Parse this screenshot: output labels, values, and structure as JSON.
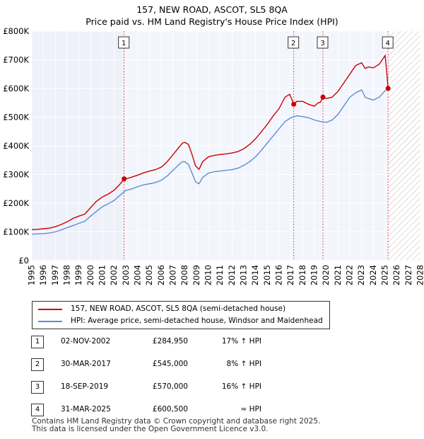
{
  "header": {
    "title": "157, NEW ROAD, ASCOT, SL5 8QA",
    "subtitle": "Price paid vs. HM Land Registry's House Price Index (HPI)"
  },
  "chart_data": {
    "type": "line",
    "title": "157, NEW ROAD, ASCOT, SL5 8QA",
    "subtitle": "Price paid vs. HM Land Registry's House Price Index (HPI)",
    "xlabel": "",
    "ylabel": "",
    "xlim": [
      1995,
      2028
    ],
    "ylim": [
      0,
      800000
    ],
    "x_ticks": [
      1995,
      1996,
      1997,
      1998,
      1999,
      2000,
      2001,
      2002,
      2003,
      2004,
      2005,
      2006,
      2007,
      2008,
      2009,
      2010,
      2011,
      2012,
      2013,
      2014,
      2015,
      2016,
      2017,
      2018,
      2019,
      2020,
      2021,
      2022,
      2023,
      2024,
      2025,
      2026,
      2027,
      2028
    ],
    "y_ticks": [
      {
        "value": 0,
        "label": "£0"
      },
      {
        "value": 100000,
        "label": "£100K"
      },
      {
        "value": 200000,
        "label": "£200K"
      },
      {
        "value": 300000,
        "label": "£300K"
      },
      {
        "value": 400000,
        "label": "£400K"
      },
      {
        "value": 500000,
        "label": "£500K"
      },
      {
        "value": 600000,
        "label": "£600K"
      },
      {
        "value": 700000,
        "label": "£700K"
      },
      {
        "value": 800000,
        "label": "£800K"
      }
    ],
    "grid": true,
    "future_hatch_from": 2025.25,
    "sale_band": [
      2002.84,
      2025.25
    ],
    "series": [
      {
        "name": "157, NEW ROAD, ASCOT, SL5 8QA (semi-detached house)",
        "color": "#cc0000",
        "points": [
          [
            1995.0,
            108000
          ],
          [
            1995.5,
            109000
          ],
          [
            1996.0,
            111000
          ],
          [
            1996.5,
            113000
          ],
          [
            1997.0,
            118000
          ],
          [
            1997.5,
            126000
          ],
          [
            1998.0,
            135000
          ],
          [
            1998.5,
            147000
          ],
          [
            1999.0,
            155000
          ],
          [
            1999.5,
            162000
          ],
          [
            2000.0,
            185000
          ],
          [
            2000.5,
            207000
          ],
          [
            2001.0,
            222000
          ],
          [
            2001.5,
            232000
          ],
          [
            2002.0,
            246000
          ],
          [
            2002.5,
            267000
          ],
          [
            2002.84,
            284950
          ],
          [
            2003.0,
            285000
          ],
          [
            2003.5,
            291000
          ],
          [
            2004.0,
            298000
          ],
          [
            2004.5,
            306000
          ],
          [
            2005.0,
            312000
          ],
          [
            2005.5,
            317000
          ],
          [
            2006.0,
            326000
          ],
          [
            2006.5,
            345000
          ],
          [
            2007.0,
            370000
          ],
          [
            2007.5,
            395000
          ],
          [
            2007.8,
            410000
          ],
          [
            2008.0,
            412000
          ],
          [
            2008.3,
            405000
          ],
          [
            2008.6,
            370000
          ],
          [
            2008.9,
            330000
          ],
          [
            2009.2,
            318000
          ],
          [
            2009.5,
            345000
          ],
          [
            2010.0,
            362000
          ],
          [
            2010.5,
            367000
          ],
          [
            2011.0,
            370000
          ],
          [
            2011.5,
            372000
          ],
          [
            2012.0,
            375000
          ],
          [
            2012.5,
            380000
          ],
          [
            2013.0,
            390000
          ],
          [
            2013.5,
            405000
          ],
          [
            2014.0,
            425000
          ],
          [
            2014.5,
            450000
          ],
          [
            2015.0,
            475000
          ],
          [
            2015.5,
            505000
          ],
          [
            2016.0,
            530000
          ],
          [
            2016.5,
            570000
          ],
          [
            2016.9,
            580000
          ],
          [
            2017.24,
            545000
          ],
          [
            2017.5,
            555000
          ],
          [
            2018.0,
            555000
          ],
          [
            2018.5,
            545000
          ],
          [
            2019.0,
            538000
          ],
          [
            2019.3,
            550000
          ],
          [
            2019.5,
            552000
          ],
          [
            2019.72,
            570000
          ],
          [
            2020.0,
            565000
          ],
          [
            2020.5,
            570000
          ],
          [
            2021.0,
            590000
          ],
          [
            2021.5,
            620000
          ],
          [
            2022.0,
            650000
          ],
          [
            2022.5,
            680000
          ],
          [
            2023.0,
            690000
          ],
          [
            2023.3,
            670000
          ],
          [
            2023.6,
            675000
          ],
          [
            2024.0,
            672000
          ],
          [
            2024.5,
            685000
          ],
          [
            2025.0,
            715000
          ],
          [
            2025.15,
            650000
          ],
          [
            2025.25,
            600500
          ]
        ]
      },
      {
        "name": "HPI: Average price, semi-detached house, Windsor and Maidenhead",
        "color": "#5b8fcf",
        "points": [
          [
            1995.0,
            92000
          ],
          [
            1995.5,
            93000
          ],
          [
            1996.0,
            94000
          ],
          [
            1996.5,
            96000
          ],
          [
            1997.0,
            100000
          ],
          [
            1997.5,
            107000
          ],
          [
            1998.0,
            115000
          ],
          [
            1998.5,
            122000
          ],
          [
            1999.0,
            130000
          ],
          [
            1999.5,
            137000
          ],
          [
            2000.0,
            155000
          ],
          [
            2000.5,
            172000
          ],
          [
            2001.0,
            188000
          ],
          [
            2001.5,
            198000
          ],
          [
            2002.0,
            210000
          ],
          [
            2002.5,
            228000
          ],
          [
            2002.84,
            240000
          ],
          [
            2003.0,
            245000
          ],
          [
            2003.5,
            250000
          ],
          [
            2004.0,
            258000
          ],
          [
            2004.5,
            264000
          ],
          [
            2005.0,
            268000
          ],
          [
            2005.5,
            272000
          ],
          [
            2006.0,
            280000
          ],
          [
            2006.5,
            295000
          ],
          [
            2007.0,
            315000
          ],
          [
            2007.5,
            335000
          ],
          [
            2007.8,
            345000
          ],
          [
            2008.0,
            345000
          ],
          [
            2008.3,
            335000
          ],
          [
            2008.6,
            305000
          ],
          [
            2008.9,
            275000
          ],
          [
            2009.2,
            268000
          ],
          [
            2009.5,
            290000
          ],
          [
            2010.0,
            305000
          ],
          [
            2010.5,
            310000
          ],
          [
            2011.0,
            312000
          ],
          [
            2011.5,
            315000
          ],
          [
            2012.0,
            317000
          ],
          [
            2012.5,
            322000
          ],
          [
            2013.0,
            332000
          ],
          [
            2013.5,
            345000
          ],
          [
            2014.0,
            362000
          ],
          [
            2014.5,
            385000
          ],
          [
            2015.0,
            410000
          ],
          [
            2015.5,
            435000
          ],
          [
            2016.0,
            460000
          ],
          [
            2016.5,
            485000
          ],
          [
            2017.0,
            498000
          ],
          [
            2017.5,
            505000
          ],
          [
            2018.0,
            502000
          ],
          [
            2018.5,
            498000
          ],
          [
            2019.0,
            490000
          ],
          [
            2019.5,
            485000
          ],
          [
            2020.0,
            482000
          ],
          [
            2020.5,
            490000
          ],
          [
            2021.0,
            510000
          ],
          [
            2021.5,
            540000
          ],
          [
            2022.0,
            570000
          ],
          [
            2022.5,
            585000
          ],
          [
            2023.0,
            595000
          ],
          [
            2023.3,
            570000
          ],
          [
            2023.6,
            565000
          ],
          [
            2024.0,
            560000
          ],
          [
            2024.5,
            570000
          ],
          [
            2025.0,
            592000
          ],
          [
            2025.25,
            600500
          ]
        ]
      }
    ],
    "sales": [
      {
        "marker": "1",
        "year": 2002.84,
        "price": 284950
      },
      {
        "marker": "2",
        "year": 2017.24,
        "price": 545000
      },
      {
        "marker": "3",
        "year": 2019.72,
        "price": 570000
      },
      {
        "marker": "4",
        "year": 2025.25,
        "price": 600500
      }
    ]
  },
  "legend": {
    "items": [
      {
        "label": "157, NEW ROAD, ASCOT, SL5 8QA (semi-detached house)",
        "color": "#cc0000"
      },
      {
        "label": "HPI: Average price, semi-detached house, Windsor and Maidenhead",
        "color": "#5b8fcf"
      }
    ]
  },
  "sales_table": [
    {
      "marker": "1",
      "date": "02-NOV-2002",
      "price": "£284,950",
      "hpi": "17% ↑ HPI"
    },
    {
      "marker": "2",
      "date": "30-MAR-2017",
      "price": "£545,000",
      "hpi": "8% ↑ HPI"
    },
    {
      "marker": "3",
      "date": "18-SEP-2019",
      "price": "£570,000",
      "hpi": "16% ↑ HPI"
    },
    {
      "marker": "4",
      "date": "31-MAR-2025",
      "price": "£600,500",
      "hpi": "≈ HPI"
    }
  ],
  "footer": {
    "line1": "Contains HM Land Registry data © Crown copyright and database right 2025.",
    "line2": "This data is licensed under the Open Government Licence v3.0."
  }
}
